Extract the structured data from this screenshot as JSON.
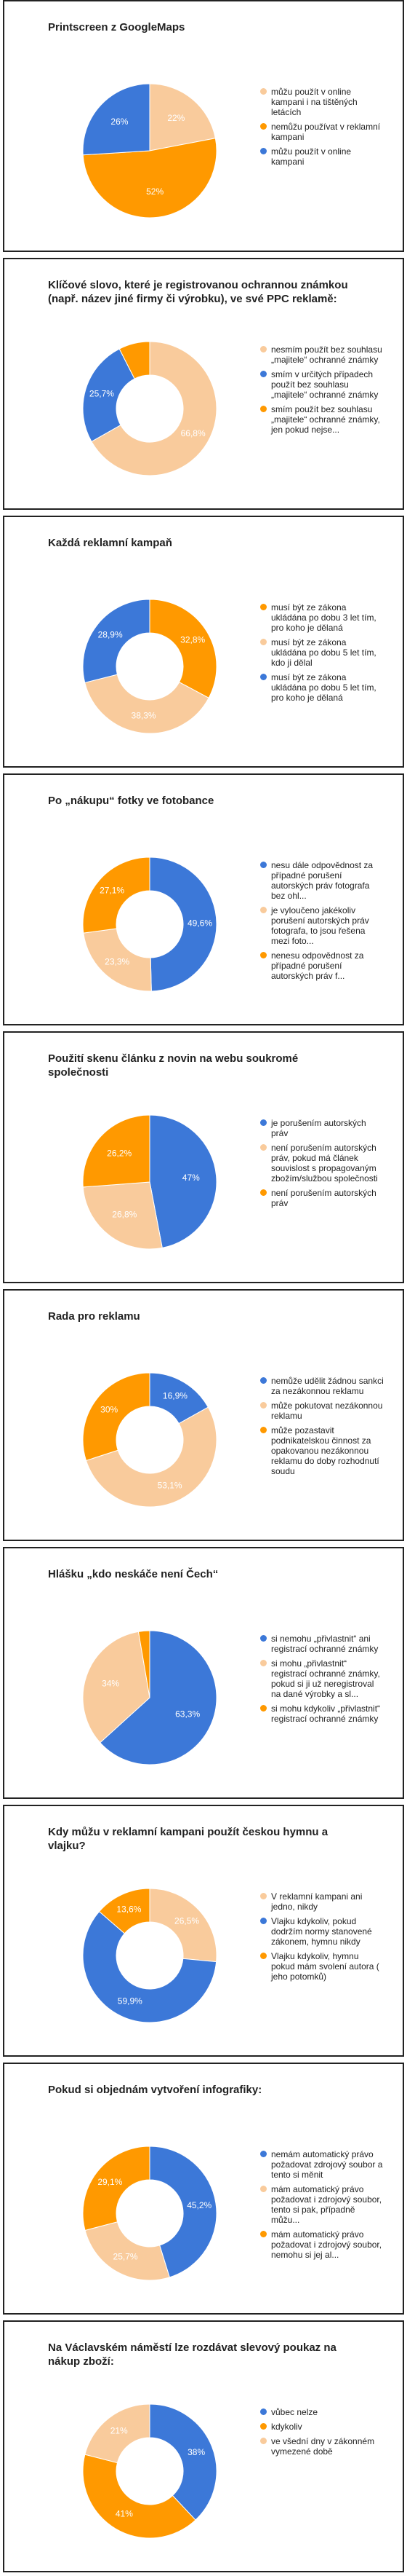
{
  "chart_data": [
    {
      "type": "pie",
      "title": "Printscreen z GoogleMaps",
      "categories": [
        "můžu použít v online kampani i na tištěných letácích",
        "nemůžu používat v reklamní kampani",
        "můžu použít v online kampani"
      ],
      "values": [
        22,
        52,
        26
      ],
      "value_labels": [
        "22%",
        "52%",
        "26%"
      ],
      "colors": [
        "#f9cb9c",
        "#ff9900",
        "#3c78d8"
      ]
    },
    {
      "type": "donut",
      "title": "Klíčové slovo, které je registrovanou ochrannou známkou (např. název jiné firmy či výrobku), ve své PPC reklamě:",
      "categories": [
        "nesmím použít bez souhlasu „majitele“ ochranné známky",
        "smím v určitých případech použít bez souhlasu „majitele“ ochranné známky",
        "smím použít bez souhlasu „majitele“ ochranné známky, jen pokud nejse..."
      ],
      "values": [
        66.8,
        25.7,
        7.5
      ],
      "value_labels": [
        "66,8%",
        "25,7%",
        null
      ],
      "colors": [
        "#f9cb9c",
        "#3c78d8",
        "#ff9900"
      ]
    },
    {
      "type": "donut",
      "title": "Každá reklamní kampaň",
      "categories": [
        "musí být ze zákona ukládána po dobu 3 let tím, pro koho je dělaná",
        "musí být ze zákona ukládána po dobu 5 let tím, kdo ji dělal",
        "musí být ze zákona ukládána po dobu 5 let tím, pro koho je dělaná"
      ],
      "values": [
        32.8,
        38.3,
        28.9
      ],
      "value_labels": [
        "32,8%",
        "38,3%",
        "28,9%"
      ],
      "colors": [
        "#ff9900",
        "#f9cb9c",
        "#3c78d8"
      ]
    },
    {
      "type": "donut",
      "title": "Po „nákupu“ fotky ve fotobance",
      "categories": [
        "nesu dále odpovědnost za případné porušení autorských práv fotografa bez ohl...",
        "je vyloučeno jakékoliv porušení autorských práv fotografa, to jsou řešena mezi foto...",
        "nenesu odpovědnost za případné porušení autorských práv f..."
      ],
      "values": [
        49.6,
        23.3,
        27.1
      ],
      "value_labels": [
        "49,6%",
        "23,3%",
        "27,1%"
      ],
      "colors": [
        "#3c78d8",
        "#f9cb9c",
        "#ff9900"
      ]
    },
    {
      "type": "pie",
      "title": "Použití skenu článku z novin na webu soukromé společnosti",
      "categories": [
        "je porušením autorských práv",
        "není porušením autorských práv, pokud má článek souvislost s propagovaným zbožím/službou společnosti",
        "není porušením autorských práv"
      ],
      "values": [
        47,
        26.8,
        26.2
      ],
      "value_labels": [
        "47%",
        "26,8%",
        "26,2%"
      ],
      "colors": [
        "#3c78d8",
        "#f9cb9c",
        "#ff9900"
      ]
    },
    {
      "type": "donut",
      "title": "Rada pro reklamu",
      "categories": [
        "nemůže udělit žádnou sankci za nezákonnou reklamu",
        "může pokutovat nezákonnou reklamu",
        "může pozastavit podnikatelskou činnost za opakovanou nezákonnou reklamu do doby rozhodnutí soudu"
      ],
      "values": [
        16.9,
        53.1,
        30
      ],
      "value_labels": [
        "16,9%",
        "53,1%",
        "30%"
      ],
      "colors": [
        "#3c78d8",
        "#f9cb9c",
        "#ff9900"
      ]
    },
    {
      "type": "pie",
      "title": "Hlášku „kdo neskáče není Čech“",
      "categories": [
        "si nemohu „přivlastnit“ ani registrací ochranné známky",
        "si mohu „přivlastnit“ registrací ochranné známky, pokud si ji už neregistroval na dané výrobky a sl...",
        "si mohu kdykoliv „přivlastnit“ registrací ochranné známky"
      ],
      "values": [
        63.3,
        34,
        2.7
      ],
      "value_labels": [
        "63,3%",
        "34%",
        null
      ],
      "colors": [
        "#3c78d8",
        "#f9cb9c",
        "#ff9900"
      ]
    },
    {
      "type": "donut",
      "title": "Kdy můžu v reklamní kampani použít českou hymnu a vlajku?",
      "categories": [
        "V reklamní kampani ani jedno, nikdy",
        "Vlajku kdykoliv, pokud dodržím normy stanovené zákonem, hymnu nikdy",
        "Vlajku kdykoliv, hymnu pokud mám svolení autora ( jeho potomků)"
      ],
      "values": [
        26.5,
        59.9,
        13.6
      ],
      "value_labels": [
        "26,5%",
        "59,9%",
        "13,6%"
      ],
      "colors": [
        "#f9cb9c",
        "#3c78d8",
        "#ff9900"
      ]
    },
    {
      "type": "donut",
      "title": "Pokud si objednám vytvoření infografiky:",
      "categories": [
        "nemám automatický právo požadovat zdrojový soubor a tento si měnit",
        "mám automatický právo požadovat i zdrojový soubor, tento si pak, případně můžu...",
        "mám automatický právo požadovat i zdrojový soubor, nemohu si jej al..."
      ],
      "values": [
        45.2,
        25.7,
        29.1
      ],
      "value_labels": [
        "45,2%",
        "25,7%",
        "29,1%"
      ],
      "colors": [
        "#3c78d8",
        "#f9cb9c",
        "#ff9900"
      ]
    },
    {
      "type": "donut",
      "title": "Na Václavském náměstí lze rozdávat slevový poukaz na nákup zboží:",
      "categories": [
        "vůbec nelze",
        "kdykoliv",
        "ve všední dny v zákonném vymezené době"
      ],
      "values": [
        38,
        41,
        21
      ],
      "value_labels": [
        "38%",
        "41%",
        "21%"
      ],
      "colors": [
        "#3c78d8",
        "#ff9900",
        "#f9cb9c"
      ]
    }
  ]
}
